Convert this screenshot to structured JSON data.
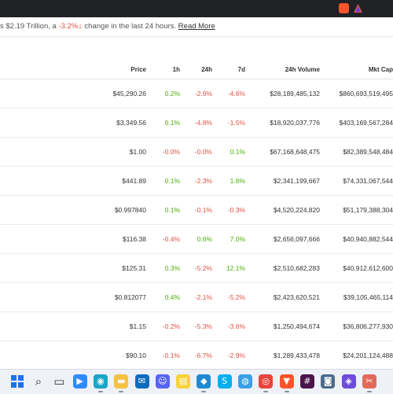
{
  "summary": {
    "prefix": "s $2.19 Trillion, a ",
    "change": "-3.2%",
    "suffix": " change in the last 24 hours. ",
    "read_more": "Read More"
  },
  "columns": [
    "Price",
    "1h",
    "24h",
    "7d",
    "24h Volume",
    "Mkt Cap"
  ],
  "rows": [
    {
      "price": "$45,290.26",
      "h1": "0.2%",
      "h24": "-2.9%",
      "d7": "-4.6%",
      "volume": "$28,189,485,132",
      "mcap": "$860,693,519,495"
    },
    {
      "price": "$3,349.56",
      "h1": "0.1%",
      "h24": "-4.8%",
      "d7": "-1.5%",
      "volume": "$18,920,037,776",
      "mcap": "$403,169,567,284"
    },
    {
      "price": "$1.00",
      "h1": "-0.0%",
      "h24": "-0.0%",
      "d7": "0.1%",
      "volume": "$67,168,648,475",
      "mcap": "$82,389,548,484"
    },
    {
      "price": "$441.89",
      "h1": "0.1%",
      "h24": "-2.3%",
      "d7": "1.8%",
      "volume": "$2,341,199,667",
      "mcap": "$74,331,067,544"
    },
    {
      "price": "$0.997840",
      "h1": "0.1%",
      "h24": "-0.1%",
      "d7": "-0.3%",
      "volume": "$4,520,224,820",
      "mcap": "$51,179,388,304"
    },
    {
      "price": "$116.38",
      "h1": "-0.4%",
      "h24": "0.6%",
      "d7": "7.0%",
      "volume": "$2,656,097,666",
      "mcap": "$40,940,882,544"
    },
    {
      "price": "$125.31",
      "h1": "0.3%",
      "h24": "-5.2%",
      "d7": "12.1%",
      "volume": "$2,510,682,283",
      "mcap": "$40,912,612,600"
    },
    {
      "price": "$0.812077",
      "h1": "0.4%",
      "h24": "-2.1%",
      "d7": "-5.2%",
      "volume": "$2,423,620,521",
      "mcap": "$39,105,465,114"
    },
    {
      "price": "$1.15",
      "h1": "-0.2%",
      "h24": "-5.3%",
      "d7": "-3.6%",
      "volume": "$1,250,494,674",
      "mcap": "$36,806,277,930"
    },
    {
      "price": "$90.10",
      "h1": "-0.1%",
      "h24": "-6.7%",
      "d7": "-2.9%",
      "volume": "$1,289,433,478",
      "mcap": "$24,201,124,488"
    }
  ],
  "taskbar": [
    {
      "name": "search-icon",
      "color": "#222222"
    },
    {
      "name": "task-view-icon",
      "color": "#333333"
    },
    {
      "name": "zoom-icon",
      "color": "#2d8cff"
    },
    {
      "name": "edge-icon",
      "color": "#1da4c8"
    },
    {
      "name": "file-explorer-icon",
      "color": "#f5c243"
    },
    {
      "name": "outlook-icon",
      "color": "#0f6cbd"
    },
    {
      "name": "discord-icon",
      "color": "#5865f2"
    },
    {
      "name": "sticky-notes-icon",
      "color": "#f7d33b"
    },
    {
      "name": "vscode-icon",
      "color": "#1f8ad2"
    },
    {
      "name": "skype-icon",
      "color": "#00aff0"
    },
    {
      "name": "cheese-icon",
      "color": "#3aa0e6"
    },
    {
      "name": "chrome-icon",
      "color": "#e8453c"
    },
    {
      "name": "brave-icon",
      "color": "#fb542b"
    },
    {
      "name": "slack-icon",
      "color": "#4a154b"
    },
    {
      "name": "camera-icon",
      "color": "#4b6b8a"
    },
    {
      "name": "app-icon",
      "color": "#6e4bd8"
    },
    {
      "name": "snipping-tool-icon",
      "color": "#e36a5b"
    }
  ],
  "colors": {
    "positive": "#4eaf0a",
    "negative": "#e15241"
  }
}
